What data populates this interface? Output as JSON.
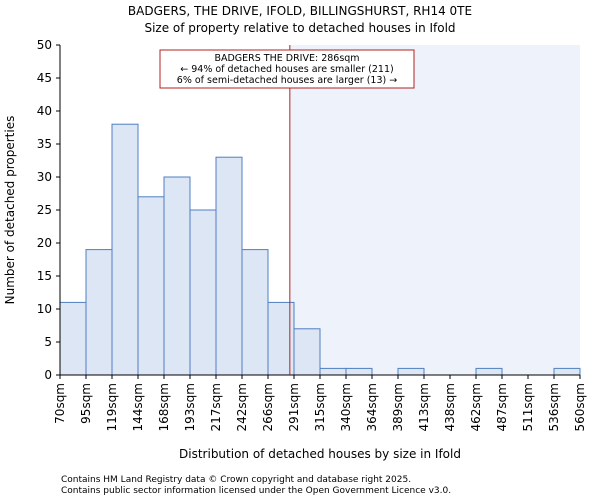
{
  "chart_data": {
    "type": "bar",
    "title": "BADGERS, THE DRIVE, IFOLD, BILLINGSHURST, RH14 0TE",
    "subtitle": "Size of property relative to detached houses in Ifold",
    "xlabel": "Distribution of detached houses by size in Ifold",
    "ylabel": "Number of detached properties",
    "ylim": [
      0,
      50
    ],
    "yticks": [
      0,
      5,
      10,
      15,
      20,
      25,
      30,
      35,
      40,
      45,
      50
    ],
    "tick_labels": [
      "70sqm",
      "95sqm",
      "119sqm",
      "144sqm",
      "168sqm",
      "193sqm",
      "217sqm",
      "242sqm",
      "266sqm",
      "291sqm",
      "315sqm",
      "340sqm",
      "364sqm",
      "389sqm",
      "413sqm",
      "438sqm",
      "462sqm",
      "487sqm",
      "511sqm",
      "536sqm",
      "560sqm"
    ],
    "values": [
      11,
      19,
      38,
      27,
      30,
      25,
      33,
      19,
      11,
      7,
      1,
      1,
      0,
      1,
      0,
      0,
      1,
      0,
      0,
      1
    ],
    "marker": {
      "value_sqm": 286,
      "bin_position": 8.84,
      "color": "#b22222",
      "lines": [
        "BADGERS THE DRIVE: 286sqm",
        "← 94% of detached houses are smaller (211)",
        "6% of semi-detached houses are larger (13) →"
      ]
    },
    "colors": {
      "bar_fill": "#dce6f4",
      "bar_stroke": "#4f7fc0",
      "shade": "#eef2fb"
    }
  },
  "footer": {
    "line1": "Contains HM Land Registry data © Crown copyright and database right 2025.",
    "line2": "Contains public sector information licensed under the Open Government Licence v3.0."
  }
}
